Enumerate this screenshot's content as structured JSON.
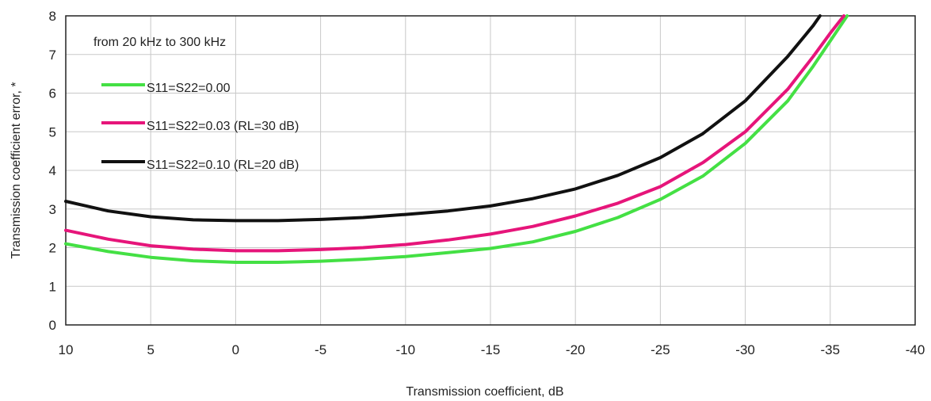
{
  "chart_data": {
    "type": "line",
    "annotation": "from 20 kHz to 300 kHz",
    "xlabel": "Transmission coefficient, dB",
    "ylabel": "Transmission coefficient error, *",
    "xlim": [
      10,
      -40
    ],
    "ylim": [
      0,
      8
    ],
    "x_ticks": [
      10,
      5,
      0,
      -5,
      -10,
      -15,
      -20,
      -25,
      -30,
      -35,
      -40
    ],
    "y_ticks": [
      0,
      1,
      2,
      3,
      4,
      5,
      6,
      7,
      8
    ],
    "grid": true,
    "legend_position": "top-left",
    "series": [
      {
        "name": "S11=S22=0.00",
        "color": "#44e044",
        "points": [
          [
            10,
            2.1
          ],
          [
            7.5,
            1.9
          ],
          [
            5,
            1.75
          ],
          [
            2.5,
            1.66
          ],
          [
            0,
            1.62
          ],
          [
            -2.5,
            1.62
          ],
          [
            -5,
            1.65
          ],
          [
            -7.5,
            1.7
          ],
          [
            -10,
            1.77
          ],
          [
            -12.5,
            1.87
          ],
          [
            -15,
            1.98
          ],
          [
            -17.5,
            2.15
          ],
          [
            -20,
            2.42
          ],
          [
            -22.5,
            2.78
          ],
          [
            -25,
            3.25
          ],
          [
            -27.5,
            3.85
          ],
          [
            -30,
            4.7
          ],
          [
            -32.5,
            5.8
          ],
          [
            -34,
            6.7
          ],
          [
            -35,
            7.35
          ],
          [
            -36,
            8.0
          ]
        ]
      },
      {
        "name": "S11=S22=0.03 (RL=30 dB)",
        "color": "#e6157a",
        "points": [
          [
            10,
            2.45
          ],
          [
            7.5,
            2.22
          ],
          [
            5,
            2.05
          ],
          [
            2.5,
            1.96
          ],
          [
            0,
            1.92
          ],
          [
            -2.5,
            1.92
          ],
          [
            -5,
            1.95
          ],
          [
            -7.5,
            2.0
          ],
          [
            -10,
            2.08
          ],
          [
            -12.5,
            2.2
          ],
          [
            -15,
            2.35
          ],
          [
            -17.5,
            2.55
          ],
          [
            -20,
            2.82
          ],
          [
            -22.5,
            3.15
          ],
          [
            -25,
            3.58
          ],
          [
            -27.5,
            4.2
          ],
          [
            -30,
            5.0
          ],
          [
            -32.5,
            6.1
          ],
          [
            -34,
            6.95
          ],
          [
            -35,
            7.55
          ],
          [
            -35.8,
            8.0
          ]
        ]
      },
      {
        "name": "S11=S22=0.10 (RL=20 dB)",
        "color": "#111111",
        "points": [
          [
            10,
            3.2
          ],
          [
            7.5,
            2.95
          ],
          [
            5,
            2.8
          ],
          [
            2.5,
            2.72
          ],
          [
            0,
            2.7
          ],
          [
            -2.5,
            2.7
          ],
          [
            -5,
            2.73
          ],
          [
            -7.5,
            2.78
          ],
          [
            -10,
            2.86
          ],
          [
            -12.5,
            2.95
          ],
          [
            -15,
            3.08
          ],
          [
            -17.5,
            3.27
          ],
          [
            -20,
            3.52
          ],
          [
            -22.5,
            3.87
          ],
          [
            -25,
            4.33
          ],
          [
            -27.5,
            4.95
          ],
          [
            -30,
            5.8
          ],
          [
            -32.5,
            6.95
          ],
          [
            -34,
            7.75
          ],
          [
            -34.4,
            8.0
          ]
        ]
      }
    ]
  }
}
